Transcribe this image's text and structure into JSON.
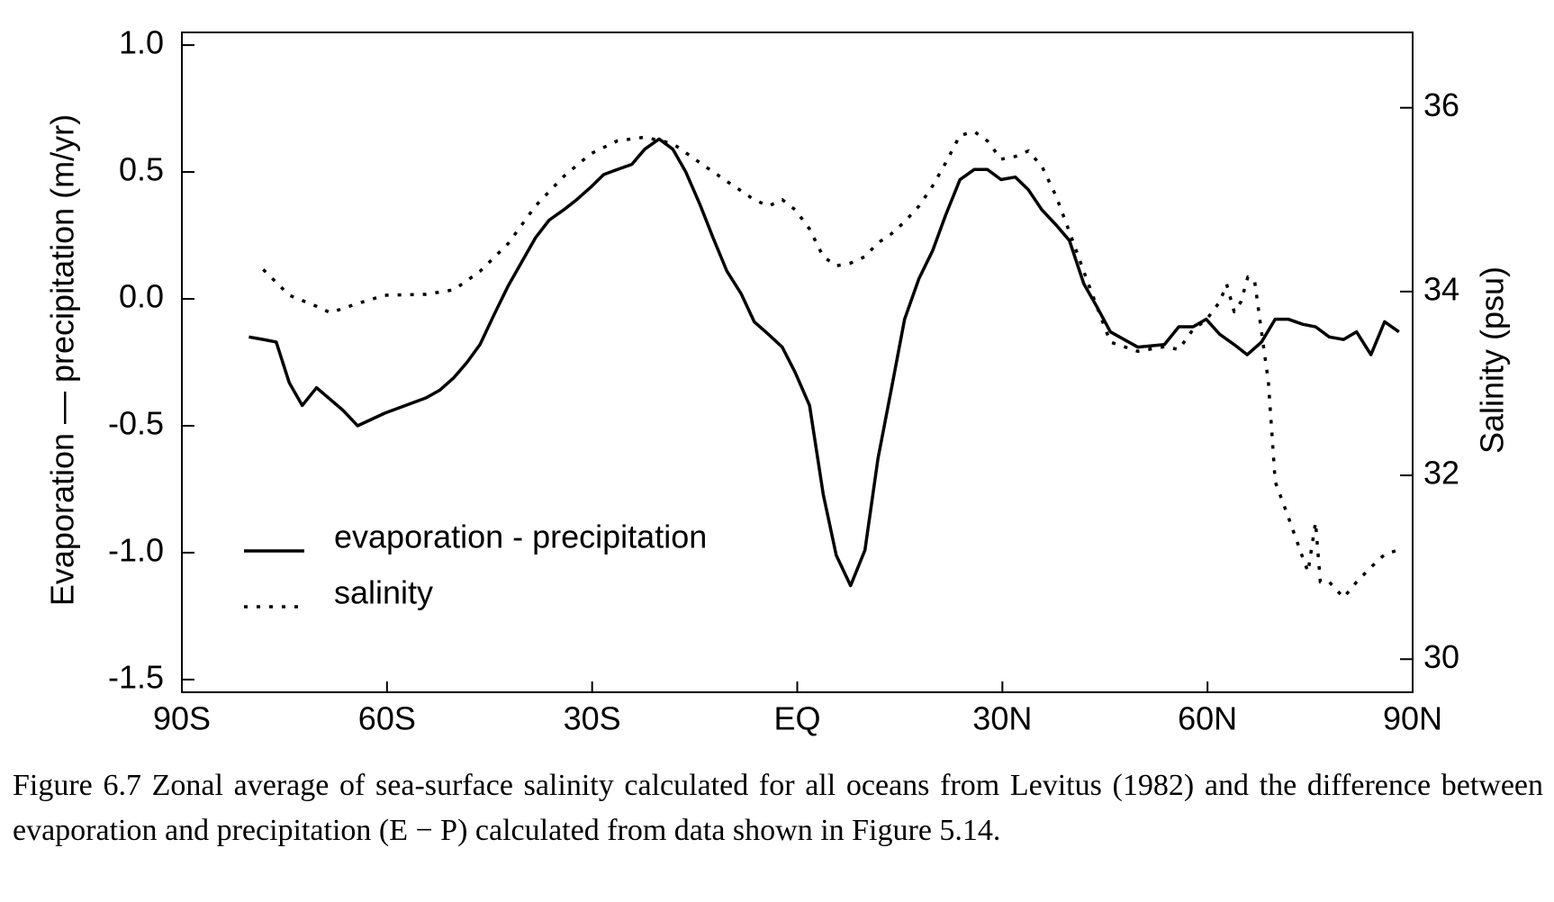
{
  "chart_data": {
    "type": "line",
    "ylabel": "Evaporation — precipitation (m/yr)",
    "y2label": "Salinity (psu)",
    "caption": "Figure 6.7 Zonal average of sea-surface salinity calculated for all oceans from Levitus (1982) and the difference between evaporation and precipitation (E − P) calculated from data shown in Figure 5.14.",
    "xlim": [
      -90,
      90
    ],
    "xticks": [
      {
        "value": -90,
        "label": "90S"
      },
      {
        "value": -60,
        "label": "60S"
      },
      {
        "value": -30,
        "label": "30S"
      },
      {
        "value": 0,
        "label": "EQ"
      },
      {
        "value": 30,
        "label": "30N"
      },
      {
        "value": 60,
        "label": "60N"
      },
      {
        "value": 90,
        "label": "90N"
      }
    ],
    "ylim": [
      -1.55,
      1.05
    ],
    "yticks": [
      {
        "value": 1.0,
        "label": "1.0"
      },
      {
        "value": 0.5,
        "label": "0.5"
      },
      {
        "value": 0.0,
        "label": "0.0"
      },
      {
        "value": -0.5,
        "label": "-0.5"
      },
      {
        "value": -1.0,
        "label": "-1.0"
      },
      {
        "value": -1.5,
        "label": "-1.5"
      }
    ],
    "y2lim": [
      29.64,
      36.82
    ],
    "y2ticks": [
      30,
      32,
      34,
      36
    ],
    "series": [
      {
        "name": "evaporation - precipitation",
        "color": "#000000",
        "style": "solid",
        "x": [
          -80.2,
          -78.1,
          -76.2,
          -74.3,
          -72.4,
          -70.3,
          -66.4,
          -64.3,
          -60.3,
          -54.3,
          -52.3,
          -50.2,
          -48.3,
          -46.4,
          -44.3,
          -42.3,
          -40.2,
          -38.3,
          -36.3,
          -34.2,
          -32.3,
          -30.2,
          -28.3,
          -26.3,
          -24.2,
          -22.3,
          -20.2,
          -18.2,
          -16.3,
          -14.2,
          -12.3,
          -10.3,
          -8.2,
          -6.3,
          -4.2,
          -2.2,
          -0.3,
          1.8,
          3.8,
          5.7,
          7.8,
          9.9,
          11.8,
          13.8,
          15.7,
          17.8,
          19.8,
          21.7,
          23.8,
          25.9,
          27.8,
          29.8,
          31.9,
          33.8,
          35.8,
          37.9,
          39.8,
          41.9,
          43.8,
          45.8,
          49.8,
          53.7,
          55.8,
          57.9,
          59.8,
          61.8,
          63.9,
          65.8,
          67.9,
          69.9,
          71.8,
          73.9,
          75.8,
          77.8,
          79.9,
          81.8,
          83.9,
          85.9,
          88.0
        ],
        "values": [
          -0.15,
          -0.16,
          -0.17,
          -0.33,
          -0.42,
          -0.35,
          -0.44,
          -0.5,
          -0.45,
          -0.39,
          -0.36,
          -0.31,
          -0.25,
          -0.18,
          -0.06,
          0.05,
          0.15,
          0.24,
          0.31,
          0.35,
          0.39,
          0.44,
          0.49,
          0.51,
          0.53,
          0.59,
          0.63,
          0.59,
          0.5,
          0.37,
          0.24,
          0.11,
          0.02,
          -0.09,
          -0.14,
          -0.19,
          -0.29,
          -0.42,
          -0.77,
          -1.01,
          -1.13,
          -0.99,
          -0.63,
          -0.35,
          -0.08,
          0.08,
          0.19,
          0.33,
          0.47,
          0.51,
          0.51,
          0.47,
          0.48,
          0.43,
          0.35,
          0.29,
          0.23,
          0.06,
          -0.03,
          -0.13,
          -0.19,
          -0.18,
          -0.11,
          -0.11,
          -0.08,
          -0.14,
          -0.18,
          -0.22,
          -0.17,
          -0.08,
          -0.08,
          -0.1,
          -0.11,
          -0.15,
          -0.16,
          -0.13,
          -0.22,
          -0.09,
          -0.13
        ]
      },
      {
        "name": "salinity",
        "color": "#000000",
        "style": "dotted",
        "axis": "y2",
        "x": [
          -78.1,
          -74.3,
          -70.3,
          -68.3,
          -64.3,
          -60.3,
          -54.3,
          -50.2,
          -46.4,
          -42.3,
          -38.3,
          -34.2,
          -30.2,
          -26.3,
          -22.3,
          -18.2,
          -14.2,
          -10.3,
          -6.3,
          -4.2,
          -2.2,
          -0.3,
          1.8,
          3.8,
          5.7,
          7.8,
          9.9,
          11.8,
          13.8,
          15.7,
          17.8,
          19.8,
          21.7,
          23.8,
          25.9,
          27.8,
          29.8,
          31.9,
          33.8,
          35.8,
          37.9,
          39.8,
          41.9,
          43.8,
          45.8,
          49.8,
          53.7,
          55.8,
          57.9,
          59.8,
          61.8,
          62.8,
          63.9,
          64.9,
          65.9,
          66.9,
          67.9,
          68.9,
          69.9,
          71.8,
          73.9,
          74.7,
          75.8,
          76.5,
          77.8,
          79.9,
          81.8,
          83.9,
          85.9,
          88.0
        ],
        "values": [
          34.24,
          33.96,
          33.84,
          33.77,
          33.87,
          33.96,
          33.97,
          34.02,
          34.22,
          34.52,
          34.93,
          35.25,
          35.5,
          35.64,
          35.68,
          35.61,
          35.4,
          35.2,
          35.0,
          34.93,
          35.0,
          34.89,
          34.68,
          34.38,
          34.28,
          34.31,
          34.38,
          34.53,
          34.63,
          34.76,
          34.93,
          35.15,
          35.4,
          35.7,
          35.74,
          35.64,
          35.44,
          35.47,
          35.53,
          35.36,
          35.03,
          34.65,
          34.22,
          33.84,
          33.45,
          33.35,
          33.4,
          33.37,
          33.59,
          33.69,
          33.89,
          34.08,
          33.78,
          33.89,
          34.16,
          34.11,
          33.56,
          33.02,
          31.93,
          31.55,
          31.11,
          30.95,
          31.49,
          30.84,
          30.84,
          30.67,
          30.84,
          31.0,
          31.14,
          31.19
        ]
      }
    ]
  }
}
